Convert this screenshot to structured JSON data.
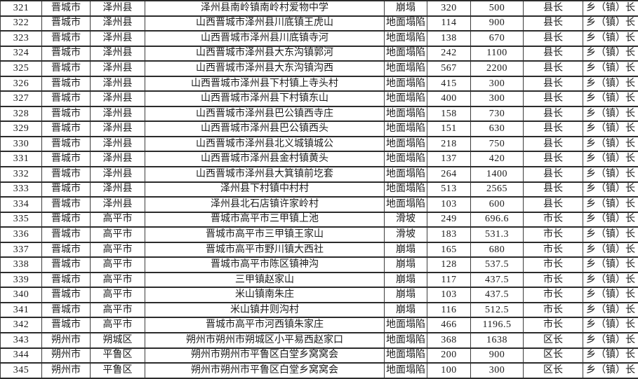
{
  "colors": {
    "background": "#ffffff",
    "text": "#1c1c1c",
    "grid_horizontal": "#2b2b2b",
    "grid_vertical": "#3d3d3d"
  },
  "table": {
    "rows": [
      [
        "321",
        "晋城市",
        "泽州县",
        "泽州县南岭镇南岭村爱物中学",
        "崩塌",
        "320",
        "500",
        "县长",
        "乡（镇）长"
      ],
      [
        "322",
        "晋城市",
        "泽州县",
        "山西晋城市泽州县川底镇王虎山",
        "地面塌陷",
        "114",
        "900",
        "县长",
        "乡（镇）长"
      ],
      [
        "323",
        "晋城市",
        "泽州县",
        "山西晋城市泽州县川底镇寺河",
        "地面塌陷",
        "138",
        "670",
        "县长",
        "乡（镇）长"
      ],
      [
        "324",
        "晋城市",
        "泽州县",
        "山西晋城市泽州县大东沟镇郭河",
        "地面塌陷",
        "242",
        "1100",
        "县长",
        "乡（镇）长"
      ],
      [
        "325",
        "晋城市",
        "泽州县",
        "山西晋城市泽州县大东沟镇沟西",
        "地面塌陷",
        "567",
        "2200",
        "县长",
        "乡（镇）长"
      ],
      [
        "326",
        "晋城市",
        "泽州县",
        "山西晋城市泽州县下村镇上寺头村",
        "地面塌陷",
        "415",
        "300",
        "县长",
        "乡（镇）长"
      ],
      [
        "327",
        "晋城市",
        "泽州县",
        "山西晋城市泽州县下村镇东山",
        "地面塌陷",
        "400",
        "300",
        "县长",
        "乡（镇）长"
      ],
      [
        "328",
        "晋城市",
        "泽州县",
        "山西晋城市泽州县巴公镇西寺庄",
        "地面塌陷",
        "158",
        "730",
        "县长",
        "乡（镇）长"
      ],
      [
        "329",
        "晋城市",
        "泽州县",
        "山西晋城市泽州县巴公镇西头",
        "地面塌陷",
        "151",
        "630",
        "县长",
        "乡（镇）长"
      ],
      [
        "330",
        "晋城市",
        "泽州县",
        "山西晋城市泽州县北义城镇城公",
        "地面塌陷",
        "218",
        "750",
        "县长",
        "乡（镇）长"
      ],
      [
        "331",
        "晋城市",
        "泽州县",
        "山西晋城市泽州县金村镇黄头",
        "地面塌陷",
        "137",
        "420",
        "县长",
        "乡（镇）长"
      ],
      [
        "332",
        "晋城市",
        "泽州县",
        "山西晋城市泽州县大箕镇前圪套",
        "地面塌陷",
        "264",
        "1400",
        "县长",
        "乡（镇）长"
      ],
      [
        "333",
        "晋城市",
        "泽州县",
        "泽州县下村镇中村村",
        "地面塌陷",
        "513",
        "2565",
        "县长",
        "乡（镇）长"
      ],
      [
        "334",
        "晋城市",
        "泽州县",
        "泽州县北石店镇许家岭村",
        "地面塌陷",
        "103",
        "600",
        "县长",
        "乡（镇）长"
      ],
      [
        "335",
        "晋城市",
        "高平市",
        "晋城市高平市三甲镇上池",
        "滑坡",
        "249",
        "696.6",
        "市长",
        "乡（镇）长"
      ],
      [
        "336",
        "晋城市",
        "高平市",
        "晋城市高平市三甲镇王家山",
        "滑坡",
        "183",
        "531.3",
        "市长",
        "乡（镇）长"
      ],
      [
        "337",
        "晋城市",
        "高平市",
        "晋城市高平市野川镇大西社",
        "崩塌",
        "165",
        "680",
        "市长",
        "乡（镇）长"
      ],
      [
        "338",
        "晋城市",
        "高平市",
        "晋城市高平市陈区镇神沟",
        "崩塌",
        "128",
        "537.5",
        "市长",
        "乡（镇）长"
      ],
      [
        "339",
        "晋城市",
        "高平市",
        "三甲镇赵家山",
        "崩塌",
        "117",
        "437.5",
        "市长",
        "乡（镇）长"
      ],
      [
        "340",
        "晋城市",
        "高平市",
        "米山镇南朱庄",
        "崩塌",
        "103",
        "437.5",
        "市长",
        "乡（镇）长"
      ],
      [
        "341",
        "晋城市",
        "高平市",
        "米山镇井则沟村",
        "崩塌",
        "116",
        "512.5",
        "市长",
        "乡（镇）长"
      ],
      [
        "342",
        "晋城市",
        "高平市",
        "晋城市高平市河西镇朱家庄",
        "地面塌陷",
        "466",
        "1196.5",
        "市长",
        "乡（镇）长"
      ],
      [
        "343",
        "朔州市",
        "朔城区",
        "朔州市朔州市朔城区小平易西赵家口",
        "地面塌陷",
        "368",
        "1638",
        "区长",
        "乡（镇）长"
      ],
      [
        "344",
        "朔州市",
        "平鲁区",
        "朔州市朔州市平鲁区白堂乡窝窝会",
        "地面塌陷",
        "200",
        "900",
        "区长",
        "乡（镇）长"
      ],
      [
        "345",
        "朔州市",
        "平鲁区",
        "朔州市朔州市平鲁区白堂乡窝窝会",
        "地面塌陷",
        "100",
        "300",
        "区长",
        "乡（镇）长"
      ]
    ]
  }
}
